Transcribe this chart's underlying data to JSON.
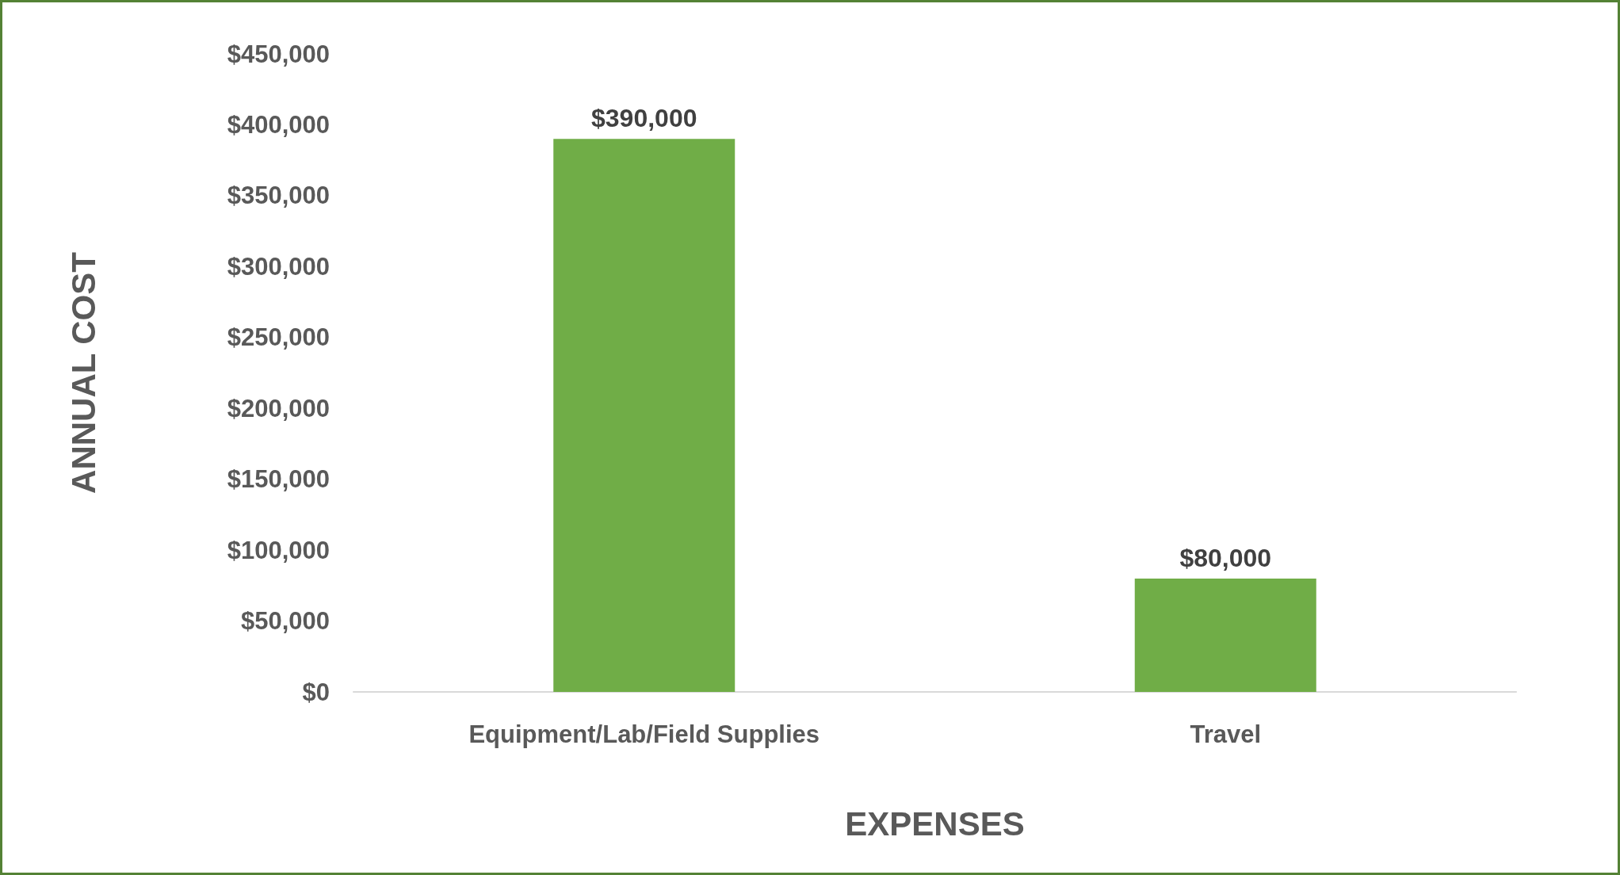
{
  "chart_data": {
    "type": "bar",
    "xlabel": "EXPENSES",
    "ylabel": "ANNUAL COST",
    "categories": [
      "Equipment/Lab/Field Supplies",
      "Travel"
    ],
    "values": [
      390000,
      80000
    ],
    "color": "#70ad47",
    "value_labels": [
      "$390,000",
      "$80,000"
    ],
    "ylim": [
      0,
      450000
    ],
    "yticks": [
      {
        "value": 0,
        "label": "$0"
      },
      {
        "value": 50000,
        "label": "$50,000"
      },
      {
        "value": 100000,
        "label": "$100,000"
      },
      {
        "value": 150000,
        "label": "$150,000"
      },
      {
        "value": 200000,
        "label": "$200,000"
      },
      {
        "value": 250000,
        "label": "$250,000"
      },
      {
        "value": 300000,
        "label": "$300,000"
      },
      {
        "value": 350000,
        "label": "$350,000"
      },
      {
        "value": 400000,
        "label": "$400,000"
      },
      {
        "value": 450000,
        "label": "$450,000"
      }
    ],
    "grid": false
  }
}
